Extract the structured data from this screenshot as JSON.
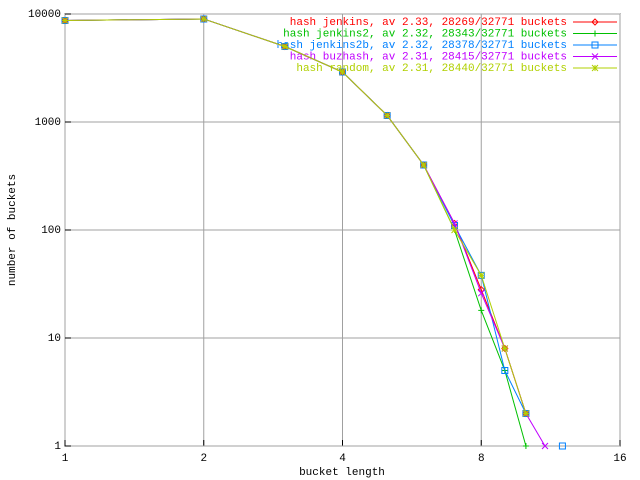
{
  "chart_data": {
    "type": "line",
    "xlabel": "bucket length",
    "ylabel": "number of buckets",
    "x": [
      1,
      2,
      3,
      4,
      5,
      6,
      7,
      8,
      9,
      10,
      11,
      12
    ],
    "xlim": [
      1,
      16
    ],
    "xticks": [
      1,
      2,
      4,
      8,
      16
    ],
    "xscale": "log",
    "ylim": [
      1,
      10000
    ],
    "yticks": [
      1,
      10,
      100,
      1000,
      10000
    ],
    "yscale": "log",
    "grid": true,
    "legend": "top-right",
    "series": [
      {
        "name": "hash jenkins, av 2.33, 28269/32771 buckets",
        "color": "#ff0000",
        "marker": "diamond",
        "values": [
          8700,
          9000,
          5000,
          2900,
          1150,
          400,
          115,
          28,
          8,
          2,
          null,
          null
        ]
      },
      {
        "name": "hash jenkins2, av 2.32, 28343/32771 buckets",
        "color": "#00c000",
        "marker": "plus",
        "values": [
          8700,
          9000,
          5000,
          2900,
          1150,
          400,
          100,
          18,
          5,
          1,
          null,
          null
        ]
      },
      {
        "name": "hash jenkins2b, av 2.32, 28378/32771 buckets",
        "color": "#0080ff",
        "marker": "square",
        "values": [
          8700,
          9000,
          5000,
          2900,
          1150,
          400,
          110,
          38,
          5,
          2,
          null,
          1
        ]
      },
      {
        "name": "hash buzhash, av 2.31, 28415/32771 buckets",
        "color": "#c000ff",
        "marker": "cross",
        "values": [
          8700,
          9000,
          5000,
          2900,
          1150,
          400,
          115,
          26,
          8,
          2,
          1,
          null
        ]
      },
      {
        "name": "hash random, av 2.31, 28440/32771 buckets",
        "color": "#b0d000",
        "marker": "star",
        "values": [
          8700,
          9000,
          5000,
          2900,
          1150,
          400,
          100,
          38,
          8,
          2,
          null,
          null
        ]
      }
    ]
  }
}
